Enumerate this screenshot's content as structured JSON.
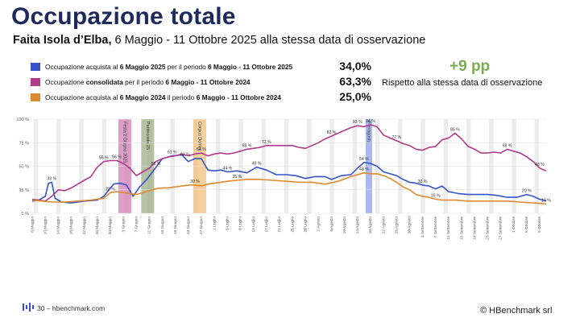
{
  "page": {
    "title": "Occupazione totale",
    "subtitle_bold": "Faita Isola d’Elba,",
    "subtitle_rest": " 6 Maggio - 11 Ottobre 2025 alla stessa data di osservazione",
    "delta": "+9 pp",
    "delta_note": "Rispetto alla stessa data di osservazione",
    "footer_text": "30 – hbenchmark.com",
    "copyright": "HBenchmark srl",
    "legend": [
      {
        "pre": "Occupazione acquista al ",
        "b1": "6 Maggio 2025",
        "mid": " per il periodo ",
        "b2": "6 Maggio - 11 Ottobre 2025",
        "value": "34,0%",
        "color": "#3553c7"
      },
      {
        "pre": "Occupazione ",
        "b1": "consolidata",
        "mid": "  per il periodo ",
        "b2": "6 Maggio - 11 Ottobre 2024",
        "value": "63,3%",
        "color": "#b33a8c"
      },
      {
        "pre": "Occupazione acquista al ",
        "b1": "6 Maggio 2024",
        "mid": " il periodo ",
        "b2": "6 Maggio - 11 Ottobre 2024",
        "value": "25,0%",
        "color": "#e08a2e"
      }
    ]
  },
  "chart_data": {
    "type": "line",
    "ylim": [
      0,
      100
    ],
    "yticks": [
      "0 %",
      "25 %",
      "50 %",
      "75 %",
      "100 %"
    ],
    "grid": true,
    "x_count": 159,
    "x_tick_labels": [
      "6 Maggio",
      "10 Maggio",
      "14 Maggio",
      "18 Maggio",
      "22 Maggio",
      "26 Maggio",
      "30 Maggio",
      "3 Giugno",
      "7 Giugno",
      "11 Giugno",
      "15 Giugno",
      "19 Giugno",
      "23 Giugno",
      "27 Giugno",
      "1 Luglio",
      "5 Luglio",
      "9 Luglio",
      "13 Luglio",
      "17 Luglio",
      "21 Luglio",
      "25 Luglio",
      "29 Luglio",
      "2 Agosto",
      "6 Agosto",
      "10 Agosto",
      "14 Agosto",
      "18 Agosto",
      "22 Agosto",
      "26 Agosto",
      "30 Agosto",
      "3 Settembre",
      "7 Settembre",
      "11 Settembre",
      "15 Settembre",
      "19 Settembre",
      "23 Settembre",
      "27 Settembre",
      "1 Ottobre",
      "5 Ottobre",
      "9 Ottobre"
    ],
    "events": [
      {
        "label": "Festa 2 Giugno 2025",
        "start": 27,
        "end": 30,
        "color": "#cf7fb6"
      },
      {
        "label": "Pentecoste 25",
        "start": 34,
        "end": 37,
        "color": "#9cae86"
      },
      {
        "label": "Corpus Domini",
        "start": 50,
        "end": 53,
        "color": "#f0c07e"
      },
      {
        "label": "Ferragosto",
        "start": 103,
        "end": 104,
        "color": "#8ea2e8"
      }
    ],
    "series": [
      {
        "name": "Occupazione acquista al 6 Maggio 2025",
        "color": "#3553c7",
        "points": [
          [
            0,
            13
          ],
          [
            2,
            14
          ],
          [
            4,
            18
          ],
          [
            5,
            32
          ],
          [
            6,
            33
          ],
          [
            7,
            16
          ],
          [
            9,
            12
          ],
          [
            12,
            11
          ],
          [
            16,
            13
          ],
          [
            20,
            14
          ],
          [
            22,
            18
          ],
          [
            25,
            31
          ],
          [
            27,
            32
          ],
          [
            29,
            30
          ],
          [
            31,
            18
          ],
          [
            33,
            28
          ],
          [
            35,
            35
          ],
          [
            37,
            44
          ],
          [
            40,
            58
          ],
          [
            43,
            61
          ],
          [
            46,
            62
          ],
          [
            48,
            55
          ],
          [
            50,
            58
          ],
          [
            52,
            58
          ],
          [
            54,
            46
          ],
          [
            56,
            45
          ],
          [
            58,
            46
          ],
          [
            60,
            44
          ],
          [
            63,
            45
          ],
          [
            66,
            43
          ],
          [
            69,
            49
          ],
          [
            72,
            46
          ],
          [
            75,
            41
          ],
          [
            78,
            41
          ],
          [
            81,
            40
          ],
          [
            84,
            37
          ],
          [
            87,
            39
          ],
          [
            90,
            39
          ],
          [
            92,
            36
          ],
          [
            95,
            40
          ],
          [
            98,
            41
          ],
          [
            100,
            48
          ],
          [
            102,
            54
          ],
          [
            104,
            53
          ],
          [
            106,
            50
          ],
          [
            108,
            44
          ],
          [
            110,
            42
          ],
          [
            112,
            40
          ],
          [
            114,
            36
          ],
          [
            116,
            33
          ],
          [
            118,
            32
          ],
          [
            120,
            30
          ],
          [
            122,
            29
          ],
          [
            124,
            26
          ],
          [
            126,
            29
          ],
          [
            128,
            23
          ],
          [
            131,
            21
          ],
          [
            134,
            20
          ],
          [
            137,
            20
          ],
          [
            140,
            20
          ],
          [
            143,
            19
          ],
          [
            146,
            17
          ],
          [
            149,
            17
          ],
          [
            152,
            20
          ],
          [
            154,
            18
          ],
          [
            156,
            15
          ],
          [
            158,
            13
          ]
        ]
      },
      {
        "name": "Occupazione consolidata 2024",
        "color": "#b33a8c",
        "points": [
          [
            0,
            15
          ],
          [
            2,
            14
          ],
          [
            4,
            13
          ],
          [
            6,
            18
          ],
          [
            8,
            25
          ],
          [
            10,
            24
          ],
          [
            12,
            27
          ],
          [
            14,
            31
          ],
          [
            16,
            35
          ],
          [
            18,
            39
          ],
          [
            20,
            49
          ],
          [
            22,
            55
          ],
          [
            24,
            56
          ],
          [
            26,
            56
          ],
          [
            28,
            53
          ],
          [
            30,
            48
          ],
          [
            32,
            40
          ],
          [
            34,
            44
          ],
          [
            36,
            48
          ],
          [
            38,
            55
          ],
          [
            40,
            58
          ],
          [
            42,
            60
          ],
          [
            44,
            61
          ],
          [
            46,
            63
          ],
          [
            48,
            61
          ],
          [
            50,
            63
          ],
          [
            52,
            64
          ],
          [
            54,
            61
          ],
          [
            56,
            63
          ],
          [
            58,
            64
          ],
          [
            60,
            63
          ],
          [
            62,
            64
          ],
          [
            64,
            66
          ],
          [
            66,
            68
          ],
          [
            68,
            69
          ],
          [
            70,
            70
          ],
          [
            72,
            72
          ],
          [
            74,
            72
          ],
          [
            76,
            72
          ],
          [
            78,
            72
          ],
          [
            80,
            72
          ],
          [
            82,
            70
          ],
          [
            84,
            69
          ],
          [
            86,
            72
          ],
          [
            88,
            75
          ],
          [
            90,
            79
          ],
          [
            92,
            82
          ],
          [
            94,
            85
          ],
          [
            96,
            88
          ],
          [
            98,
            91
          ],
          [
            100,
            93
          ],
          [
            102,
            92
          ],
          [
            104,
            94
          ],
          [
            106,
            92
          ],
          [
            108,
            83
          ],
          [
            110,
            80
          ],
          [
            112,
            77
          ],
          [
            114,
            74
          ],
          [
            116,
            72
          ],
          [
            118,
            68
          ],
          [
            120,
            67
          ],
          [
            122,
            70
          ],
          [
            124,
            71
          ],
          [
            126,
            78
          ],
          [
            128,
            80
          ],
          [
            130,
            85
          ],
          [
            132,
            79
          ],
          [
            134,
            71
          ],
          [
            136,
            68
          ],
          [
            138,
            64
          ],
          [
            140,
            64
          ],
          [
            142,
            65
          ],
          [
            144,
            64
          ],
          [
            146,
            68
          ],
          [
            148,
            66
          ],
          [
            150,
            64
          ],
          [
            152,
            60
          ],
          [
            154,
            55
          ],
          [
            156,
            48
          ],
          [
            158,
            45
          ]
        ]
      },
      {
        "name": "Occupazione acquista al 6 Maggio 2024",
        "color": "#e08a2e",
        "points": [
          [
            0,
            14
          ],
          [
            3,
            13
          ],
          [
            6,
            12
          ],
          [
            10,
            12
          ],
          [
            14,
            13
          ],
          [
            18,
            14
          ],
          [
            22,
            16
          ],
          [
            24,
            22
          ],
          [
            26,
            23
          ],
          [
            28,
            22
          ],
          [
            30,
            21
          ],
          [
            32,
            20
          ],
          [
            34,
            22
          ],
          [
            36,
            24
          ],
          [
            38,
            26
          ],
          [
            40,
            27
          ],
          [
            42,
            27
          ],
          [
            44,
            28
          ],
          [
            46,
            29
          ],
          [
            48,
            30
          ],
          [
            50,
            30
          ],
          [
            52,
            29
          ],
          [
            54,
            31
          ],
          [
            56,
            32
          ],
          [
            58,
            33
          ],
          [
            60,
            34
          ],
          [
            63,
            35
          ],
          [
            66,
            36
          ],
          [
            70,
            36
          ],
          [
            74,
            35
          ],
          [
            78,
            34
          ],
          [
            82,
            33
          ],
          [
            86,
            33
          ],
          [
            90,
            31
          ],
          [
            94,
            34
          ],
          [
            98,
            39
          ],
          [
            102,
            43
          ],
          [
            104,
            42
          ],
          [
            106,
            42
          ],
          [
            108,
            40
          ],
          [
            110,
            37
          ],
          [
            112,
            33
          ],
          [
            114,
            28
          ],
          [
            116,
            25
          ],
          [
            118,
            20
          ],
          [
            120,
            18
          ],
          [
            122,
            17
          ],
          [
            124,
            15
          ],
          [
            126,
            14
          ],
          [
            130,
            14
          ],
          [
            134,
            13
          ],
          [
            138,
            13
          ],
          [
            142,
            13
          ],
          [
            146,
            13
          ],
          [
            150,
            12
          ],
          [
            154,
            11
          ],
          [
            158,
            10
          ]
        ]
      }
    ],
    "data_labels": [
      {
        "s": 0,
        "x": 6,
        "text": "33 %"
      },
      {
        "s": 0,
        "x": 38,
        "text": "58 %"
      },
      {
        "s": 0,
        "x": 43,
        "text": "61 %"
      },
      {
        "s": 0,
        "x": 47,
        "text": "62 %"
      },
      {
        "s": 0,
        "x": 60,
        "text": "44 %"
      },
      {
        "s": 0,
        "x": 69,
        "text": "49 %"
      },
      {
        "s": 0,
        "x": 102,
        "text": "54 %"
      },
      {
        "s": 0,
        "x": 120,
        "text": "30 %"
      },
      {
        "s": 0,
        "x": 152,
        "text": "20 %"
      },
      {
        "s": 1,
        "x": 22,
        "text": "55 %"
      },
      {
        "s": 1,
        "x": 26,
        "text": "56 %"
      },
      {
        "s": 1,
        "x": 52,
        "text": "64 %"
      },
      {
        "s": 1,
        "x": 66,
        "text": "68 %"
      },
      {
        "s": 1,
        "x": 72,
        "text": "72 %"
      },
      {
        "s": 1,
        "x": 92,
        "text": "82 %"
      },
      {
        "s": 1,
        "x": 100,
        "text": "93 %"
      },
      {
        "s": 1,
        "x": 104,
        "text": "94 %"
      },
      {
        "s": 1,
        "x": 112,
        "text": "77 %"
      },
      {
        "s": 1,
        "x": 130,
        "text": "85 %"
      },
      {
        "s": 1,
        "x": 146,
        "text": "68 %"
      },
      {
        "s": 1,
        "x": 156,
        "text": "48 %"
      },
      {
        "s": 2,
        "x": 24,
        "text": "22 %"
      },
      {
        "s": 2,
        "x": 50,
        "text": "30 %"
      },
      {
        "s": 2,
        "x": 63,
        "text": "35 %"
      },
      {
        "s": 2,
        "x": 102,
        "text": "43 %"
      },
      {
        "s": 2,
        "x": 124,
        "text": "15 %"
      },
      {
        "s": 2,
        "x": 158,
        "text": "10 %"
      }
    ]
  }
}
